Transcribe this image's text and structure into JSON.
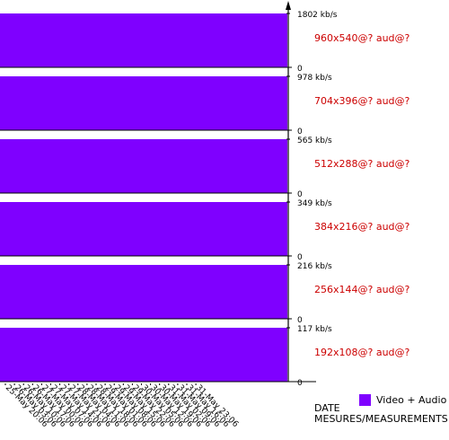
{
  "chart_data": {
    "type": "bar",
    "xlabel_lines": [
      "DATE",
      "MESURES/MEASUREMENTS"
    ],
    "categories": [
      "25-May 20:06",
      "26-May 03:06",
      "26-May 10:06",
      "26-May 17:06",
      "27-May 00:06",
      "27-May 07:06",
      "27-May 14:06",
      "27-May 21:06",
      "28-May 04:06",
      "28-May 11:06",
      "28-May 18:06",
      "29-May 01:06",
      "29-May 08:06",
      "29-May 15:06",
      "29-May 22:06",
      "30-May 05:06",
      "30-May 12:06",
      "30-May 19:06",
      "31-May 02:06",
      "31-May 09:06",
      "31-May 16:06",
      "31-May 23:06"
    ],
    "legend": {
      "label": "Video + Audio",
      "color": "#7f00ff"
    },
    "panels": [
      {
        "label": "960x540@? aud@?",
        "ymax_label": "1802 kb/s",
        "ymin_label": "0",
        "ymax": 1802,
        "value": 1802
      },
      {
        "label": "704x396@? aud@?",
        "ymax_label": "978 kb/s",
        "ymin_label": "0",
        "ymax": 978,
        "value": 978
      },
      {
        "label": "512x288@? aud@?",
        "ymax_label": "565 kb/s",
        "ymin_label": "0",
        "ymax": 565,
        "value": 565
      },
      {
        "label": "384x216@? aud@?",
        "ymax_label": "349 kb/s",
        "ymin_label": "0",
        "ymax": 349,
        "value": 349
      },
      {
        "label": "256x144@? aud@?",
        "ymax_label": "216 kb/s",
        "ymin_label": "0",
        "ymax": 216,
        "value": 216
      },
      {
        "label": "192x108@? aud@?",
        "ymax_label": "117 kb/s",
        "ymin_label": "0",
        "ymax": 117,
        "value": 117
      }
    ],
    "colors": {
      "bar": "#7f00ff",
      "label": "#cc0000",
      "axis": "#000000",
      "arrow": "#000000"
    }
  }
}
